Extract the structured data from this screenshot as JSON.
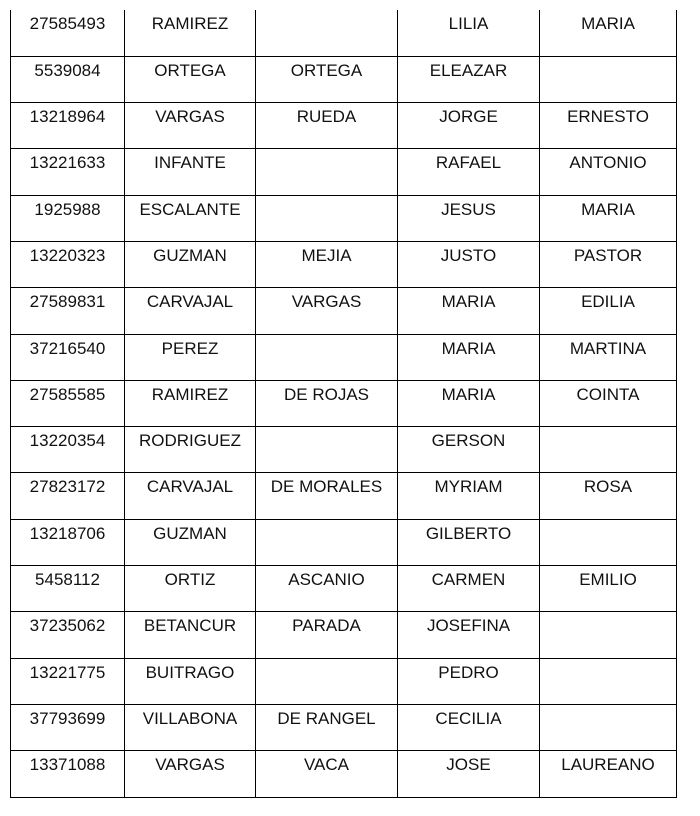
{
  "rows": [
    [
      "27585493",
      "RAMIREZ",
      "",
      "LILIA",
      "MARIA"
    ],
    [
      "5539084",
      "ORTEGA",
      "ORTEGA",
      "ELEAZAR",
      ""
    ],
    [
      "13218964",
      "VARGAS",
      "RUEDA",
      "JORGE",
      "ERNESTO"
    ],
    [
      "13221633",
      "INFANTE",
      "",
      "RAFAEL",
      "ANTONIO"
    ],
    [
      "1925988",
      "ESCALANTE",
      "",
      "JESUS",
      "MARIA"
    ],
    [
      "13220323",
      "GUZMAN",
      "MEJIA",
      "JUSTO",
      "PASTOR"
    ],
    [
      "27589831",
      "CARVAJAL",
      "VARGAS",
      "MARIA",
      "EDILIA"
    ],
    [
      "37216540",
      "PEREZ",
      "",
      "MARIA",
      "MARTINA"
    ],
    [
      "27585585",
      "RAMIREZ",
      "DE ROJAS",
      "MARIA",
      "COINTA"
    ],
    [
      "13220354",
      "RODRIGUEZ",
      "",
      "GERSON",
      ""
    ],
    [
      "27823172",
      "CARVAJAL",
      "DE MORALES",
      "MYRIAM",
      "ROSA"
    ],
    [
      "13218706",
      "GUZMAN",
      "",
      "GILBERTO",
      ""
    ],
    [
      "5458112",
      "ORTIZ",
      "ASCANIO",
      "CARMEN",
      "EMILIO"
    ],
    [
      "37235062",
      "BETANCUR",
      "PARADA",
      "JOSEFINA",
      ""
    ],
    [
      "13221775",
      "BUITRAGO",
      "",
      "PEDRO",
      ""
    ],
    [
      "37793699",
      "VILLABONA",
      "DE RANGEL",
      "CECILIA",
      ""
    ],
    [
      "13371088",
      "VARGAS",
      "VACA",
      "JOSE",
      "LAUREANO"
    ]
  ]
}
